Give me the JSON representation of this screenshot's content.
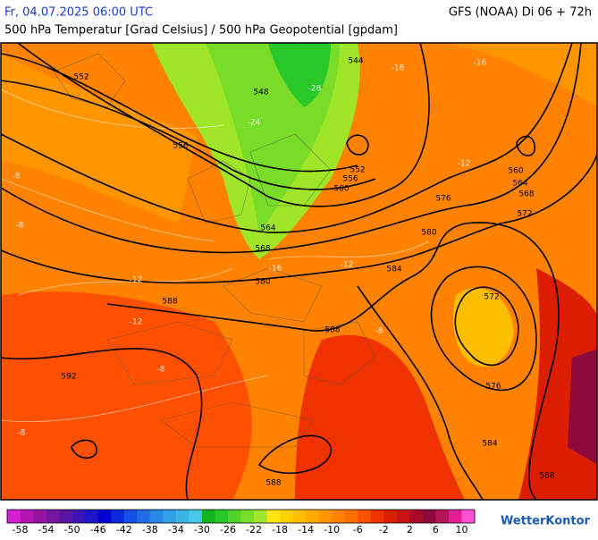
{
  "header": {
    "datetime": "Fr, 04.07.2025 06:00 UTC",
    "model": "GFS (NOAA) Di 06 + 72h",
    "subtitle": "500 hPa Temperatur [Grad Celsius] / 500 hPa Geopotential [gpdam]"
  },
  "map": {
    "contour_labels": [
      552,
      548,
      556,
      544,
      552,
      556,
      560,
      564,
      568,
      560,
      564,
      568,
      576,
      572,
      580,
      584,
      580,
      588,
      572,
      588,
      576,
      592,
      584,
      588,
      588
    ],
    "temperature_labels": [
      -28,
      -24,
      -16,
      -12,
      -12,
      -12,
      -12,
      -8,
      -8,
      -8,
      -8,
      -8,
      -16,
      -16
    ]
  },
  "legend": {
    "colors": [
      "#d21fd2",
      "#b414b4",
      "#9614a0",
      "#7814a0",
      "#5a14a0",
      "#3c14b4",
      "#1e14c8",
      "#0000d2",
      "#0a28dc",
      "#1450e6",
      "#1e6ee6",
      "#2888e6",
      "#32a0e6",
      "#3cb4e6",
      "#46c8e6",
      "#14b41e",
      "#28c828",
      "#50d228",
      "#78dc28",
      "#a0e628",
      "#ffe614",
      "#ffd200",
      "#ffbe00",
      "#ffaa00",
      "#ff9600",
      "#ff8200",
      "#ff6e00",
      "#ff5000",
      "#f03200",
      "#dc1e00",
      "#c81414",
      "#aa0a28",
      "#8c0a3c",
      "#b4145a",
      "#e61e96",
      "#ff50d2"
    ],
    "labels": [
      -58,
      -54,
      -50,
      -46,
      -42,
      -38,
      -34,
      -30,
      -26,
      -22,
      -18,
      -14,
      -10,
      -6,
      -2,
      2,
      6,
      10
    ]
  },
  "logo": "WetterKontor"
}
